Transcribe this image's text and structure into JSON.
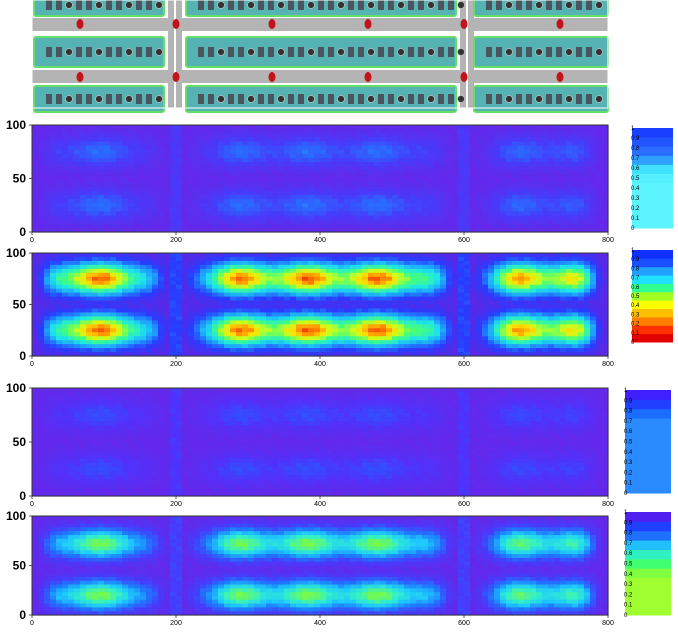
{
  "layout_sketch": {
    "description_free": true,
    "colors": {
      "road": "#b4b4b4",
      "block_fill": "#55b3b3",
      "block_edge": "#66dd66",
      "building": "#4a5560",
      "sensor": "#c0131b",
      "sidewalk_gap": "#dddddd"
    }
  },
  "chart_data": [
    {
      "type": "heatmap",
      "palette": "cyan-blue",
      "xlim": [
        0,
        800
      ],
      "ylim": [
        0,
        100
      ],
      "x_ticks": [
        "0",
        "200",
        "400",
        "600",
        "800"
      ],
      "y_ticks": [
        "100",
        "50",
        "0"
      ],
      "colorbar_ticks": [
        "1",
        "0.9",
        "0.8",
        "0.7",
        "0.6",
        "0.5",
        "0.4",
        "0.3",
        "0.2",
        "0.1",
        "0"
      ],
      "colorbar_colors": [
        "#1a40ff",
        "#2255ff",
        "#2a6dff",
        "#30a0ff",
        "#40e0ff",
        "#55f0ff",
        "#5cf4ff",
        "#5cf4ff",
        "#5cf4ff",
        "#5cf4ff",
        "#5cf4ff"
      ],
      "band_peak_low": 0.35,
      "band_peak_high": 0.35,
      "band_centers": [
        25,
        75
      ],
      "junction_x": [
        200,
        600
      ]
    },
    {
      "type": "heatmap",
      "palette": "jet",
      "xlim": [
        0,
        800
      ],
      "ylim": [
        0,
        100
      ],
      "x_ticks": [
        "0",
        "200",
        "400",
        "600",
        "800"
      ],
      "y_ticks": [
        "100",
        "50",
        "0"
      ],
      "colorbar_ticks": [
        "1",
        "0.9",
        "0.8",
        "0.7",
        "0.6",
        "0.5",
        "0.4",
        "0.3",
        "0.2",
        "0.1",
        "0"
      ],
      "colorbar_colors": [
        "#1030ff",
        "#1a50ff",
        "#20a0ff",
        "#20e0ff",
        "#30ff90",
        "#a0ff20",
        "#ffff00",
        "#ffc000",
        "#ff8000",
        "#ff3000",
        "#e00000"
      ],
      "band_peak_low": 0.95,
      "band_peak_high": 0.95,
      "band_centers": [
        25,
        75
      ],
      "junction_x": [
        200,
        600
      ]
    },
    {
      "type": "heatmap",
      "palette": "blue-violet",
      "xlim": [
        0,
        800
      ],
      "ylim": [
        0,
        100
      ],
      "x_ticks": [
        "0",
        "200",
        "400",
        "600",
        "800"
      ],
      "y_ticks": [
        "100",
        "50",
        "0"
      ],
      "colorbar_ticks": [
        "1",
        "0.9",
        "0.8",
        "0.7",
        "0.6",
        "0.5",
        "0.4",
        "0.3",
        "0.2",
        "0.1",
        "0"
      ],
      "colorbar_colors": [
        "#4020ff",
        "#2040ff",
        "#1a6dff",
        "#2a8aff",
        "#2a8aff",
        "#2a8aff",
        "#2a8aff",
        "#2a8aff",
        "#2a8aff",
        "#2a8aff",
        "#2a8aff"
      ],
      "band_peak_low": 0.25,
      "band_peak_high": 0.25,
      "band_centers": [
        25,
        75
      ],
      "junction_x": [
        200,
        600
      ]
    },
    {
      "type": "heatmap",
      "palette": "blue-green",
      "xlim": [
        0,
        800
      ],
      "ylim": [
        0,
        100
      ],
      "x_ticks": [
        "0",
        "200",
        "400",
        "600",
        "800"
      ],
      "y_ticks": [
        "100",
        "50",
        "0"
      ],
      "colorbar_ticks": [
        "1",
        "0.9",
        "0.8",
        "0.7",
        "0.6",
        "0.5",
        "0.4",
        "0.3",
        "0.2",
        "0.1",
        "0"
      ],
      "colorbar_colors": [
        "#5020f0",
        "#2040ff",
        "#2070ff",
        "#20c0ff",
        "#30f0c0",
        "#40ff70",
        "#80ff40",
        "#a0ff30",
        "#a0ff30",
        "#a0ff30",
        "#a0ff30"
      ],
      "band_peak_low": 0.75,
      "band_peak_high": 0.75,
      "band_centers": [
        20,
        72
      ],
      "junction_x": [
        200,
        600
      ]
    }
  ]
}
